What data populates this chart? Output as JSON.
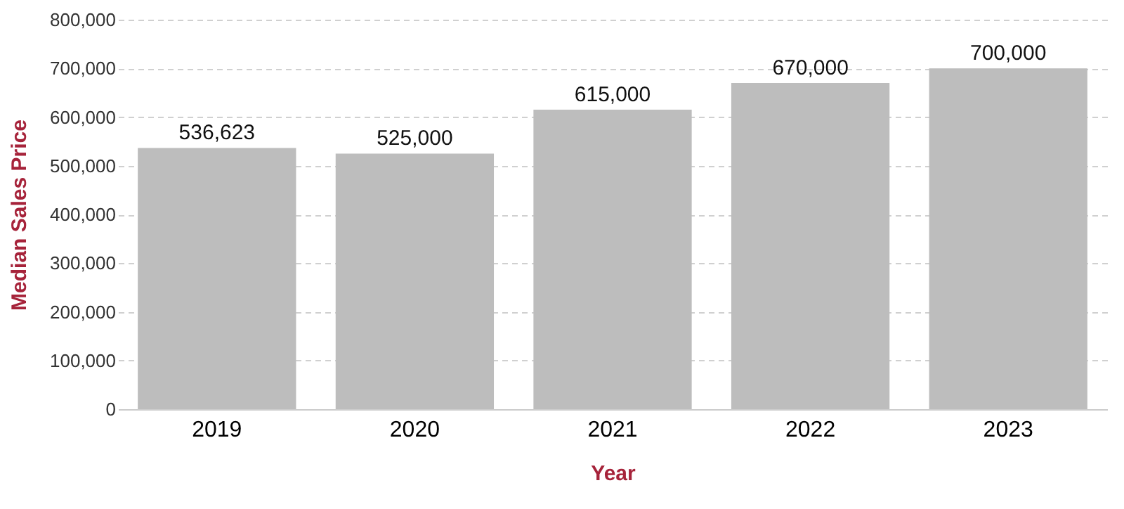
{
  "chart_data": {
    "type": "bar",
    "xlabel": "Year",
    "ylabel": "Median Sales Price",
    "categories": [
      "2019",
      "2020",
      "2021",
      "2022",
      "2023"
    ],
    "values": [
      536623,
      525000,
      615000,
      670000,
      700000
    ],
    "value_labels": [
      "536,623",
      "525,000",
      "615,000",
      "670,000",
      "700,000"
    ],
    "color": "#bdbdbd",
    "ylim": [
      0,
      800000
    ],
    "yticks": [
      0,
      {
        "value": 100000,
        "label": "100,000"
      },
      {
        "value": 200000,
        "label": "200,000"
      },
      {
        "value": 300000,
        "label": "300,000"
      },
      {
        "value": 400000,
        "label": "400,000"
      },
      {
        "value": 500000,
        "label": "500,000"
      },
      {
        "value": 600000,
        "label": "600,000"
      },
      {
        "value": 700000,
        "label": "700,000"
      },
      {
        "value": 800000,
        "label": "800,000"
      }
    ],
    "grid": "y"
  }
}
